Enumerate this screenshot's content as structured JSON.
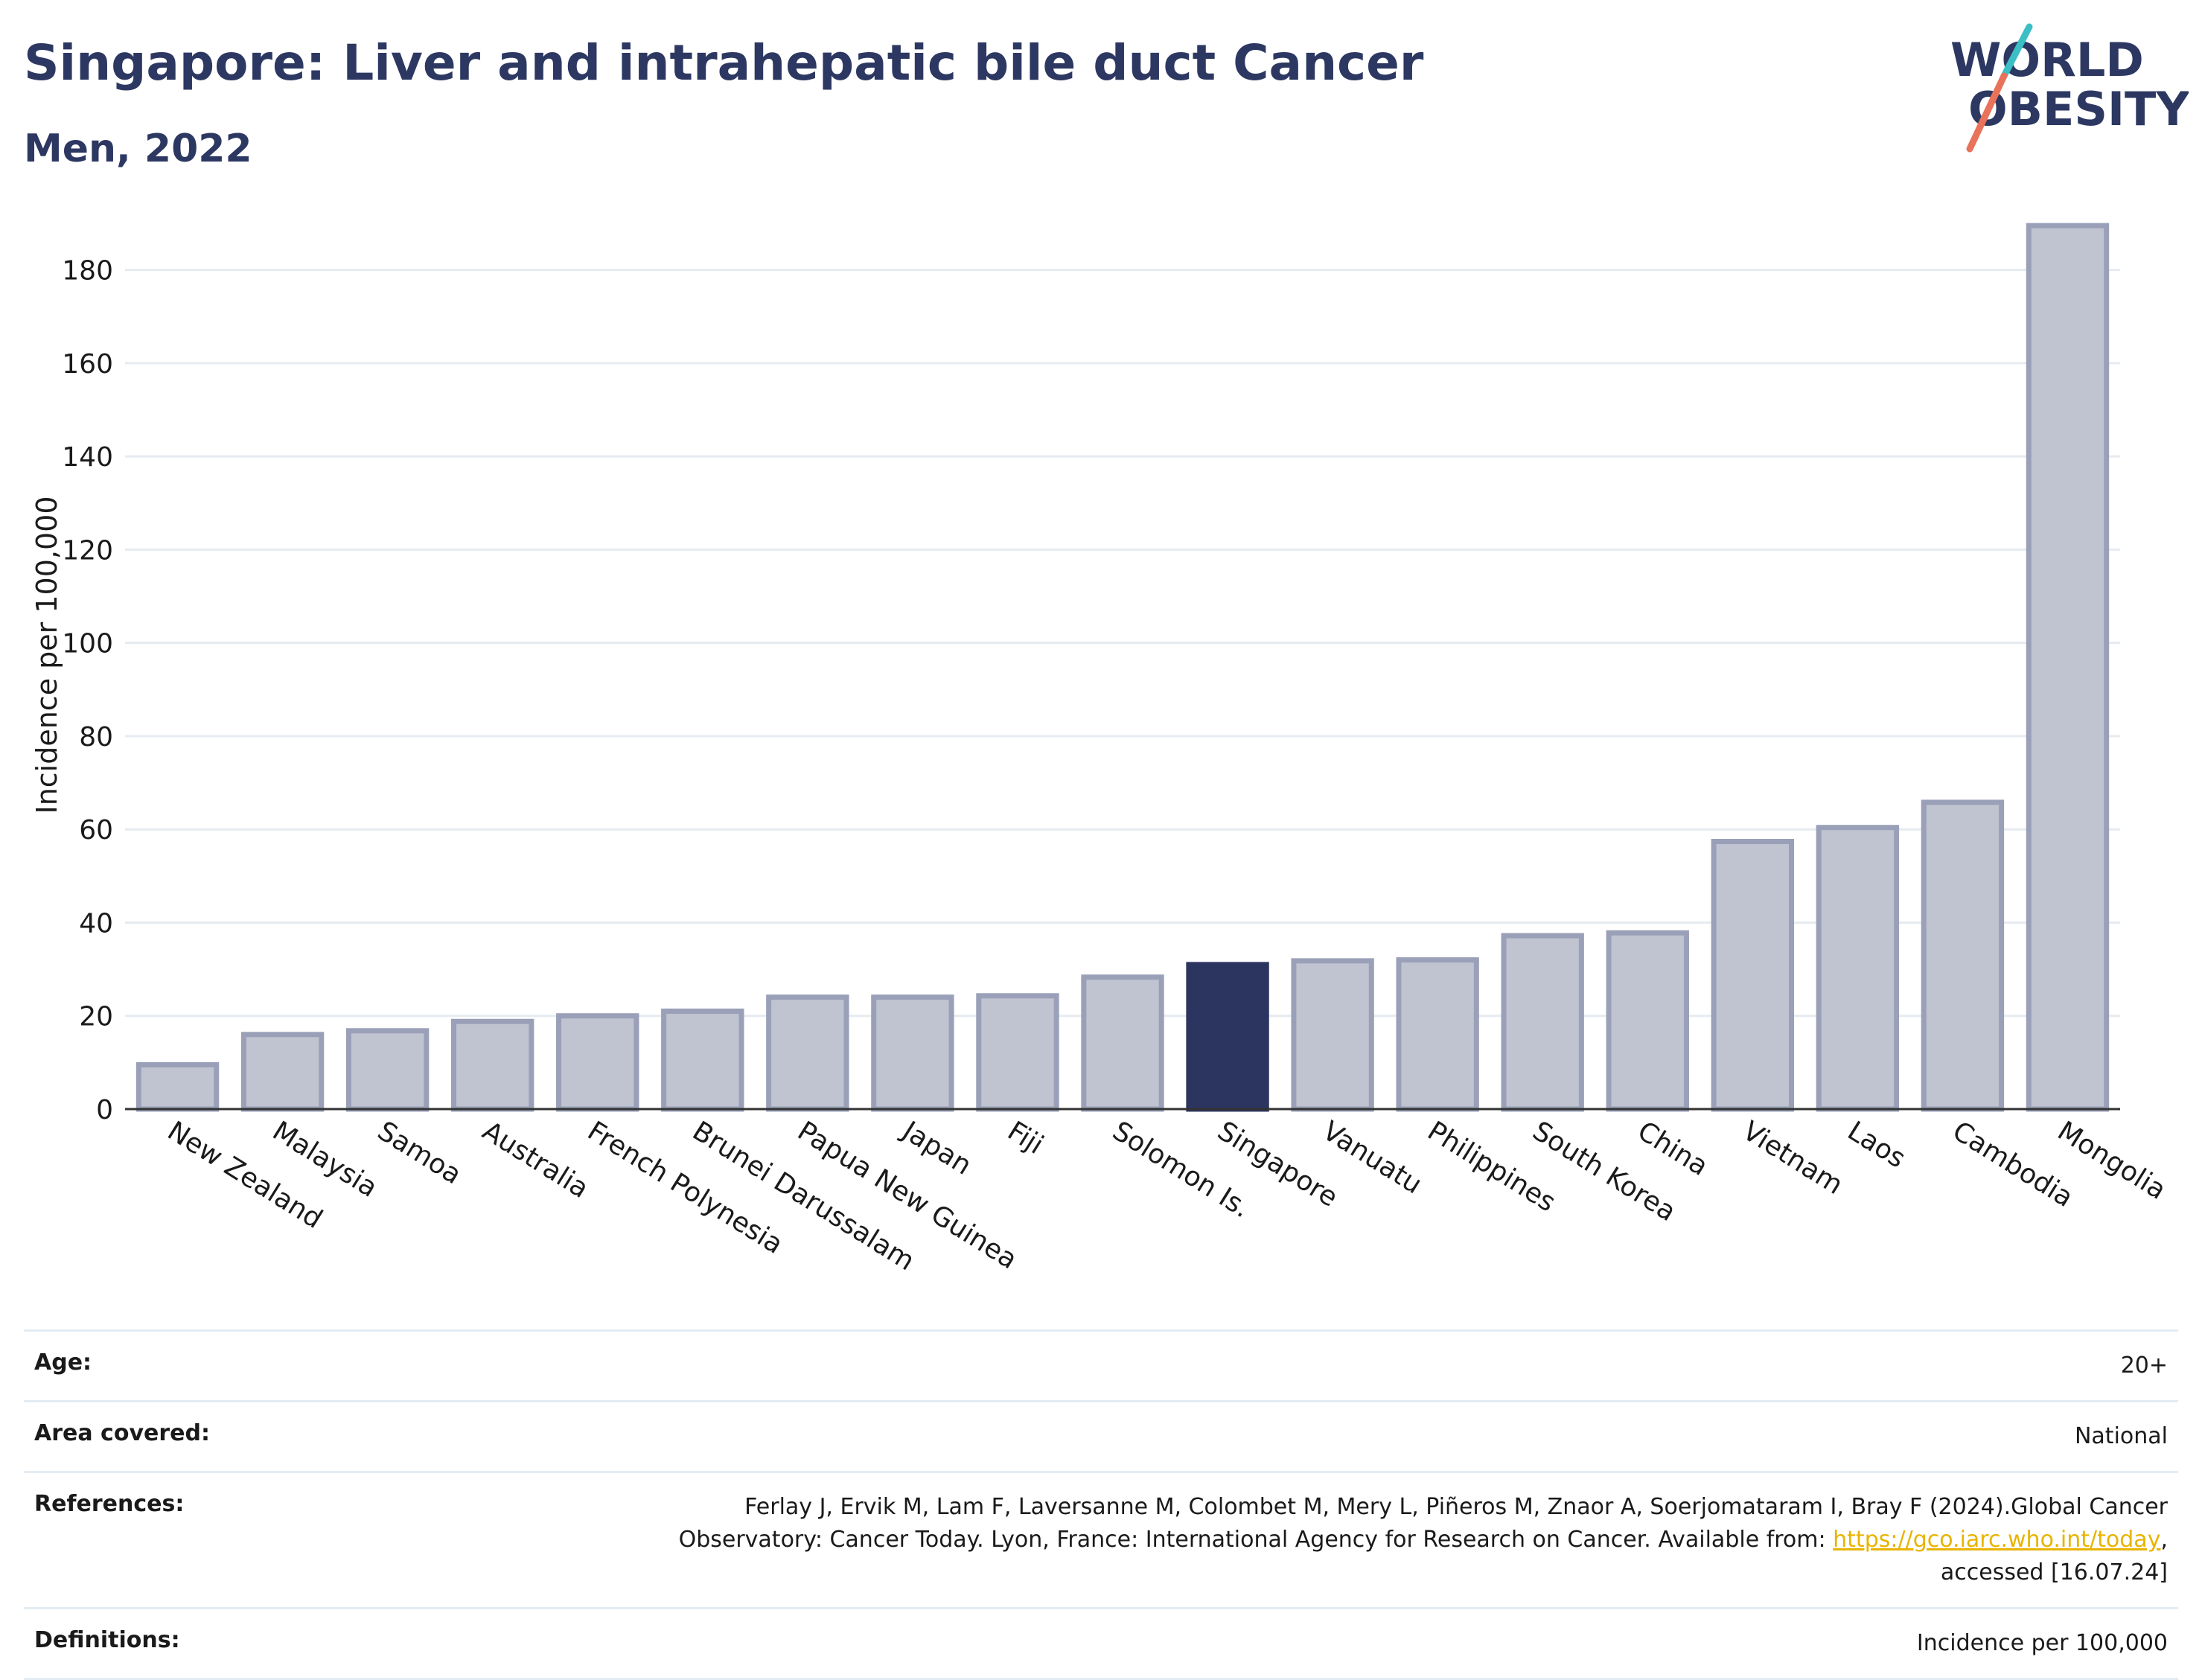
{
  "header": {
    "title": "Singapore: Liver and intrahepatic bile duct Cancer",
    "subtitle": "Men, 2022"
  },
  "logo": {
    "line1": "WORLD",
    "line2": "OBESITY"
  },
  "colors": {
    "highlight": "#2b3560",
    "bar_fill": "#c0c3d0",
    "bar_stroke": "#9aa0b8",
    "title": "#2d3862",
    "grid": "#e6ebf1",
    "link": "#e8b400",
    "logo_teal": "#3cbfc4",
    "logo_coral": "#e8735a"
  },
  "chart_data": {
    "type": "bar",
    "categories": [
      "New Zealand",
      "Malaysia",
      "Samoa",
      "Australia",
      "French Polynesia",
      "Brunei Darussalam",
      "Papua New Guinea",
      "Japan",
      "Fiji",
      "Solomon Is.",
      "Singapore",
      "Vanuatu",
      "Philippines",
      "South Korea",
      "China",
      "Vietnam",
      "Laos",
      "Cambodia",
      "Mongolia"
    ],
    "values": [
      9.5,
      16,
      16.8,
      18.8,
      20,
      21,
      24,
      24,
      24.3,
      28.3,
      31,
      31.8,
      32,
      37.2,
      37.8,
      57.4,
      60.4,
      65.8,
      189.5
    ],
    "highlight": "Singapore",
    "ylabel": "Incidence per 100,000",
    "xlabel": "",
    "ylim": [
      0,
      190
    ],
    "yticks": [
      0,
      20,
      40,
      60,
      80,
      100,
      120,
      140,
      160,
      180
    ],
    "grid": true
  },
  "info": {
    "age_label": "Age:",
    "age_value": "20+",
    "area_label": "Area covered:",
    "area_value": "National",
    "references_label": "References:",
    "references_text_1": "Ferlay J, Ervik M, Lam F, Laversanne M, Colombet M, Mery L, Piñeros M, Znaor A, Soerjomataram I, Bray F (2024).Global Cancer",
    "references_text_2": "Observatory: Cancer Today. Lyon, France: International Agency for Research on Cancer. Available from: ",
    "references_link": "https://gco.iarc.who.int/today",
    "references_text_3": ",",
    "references_text_4": "accessed [16.07.24]",
    "definitions_label": "Definitions:",
    "definitions_value": "Incidence per 100,000"
  }
}
